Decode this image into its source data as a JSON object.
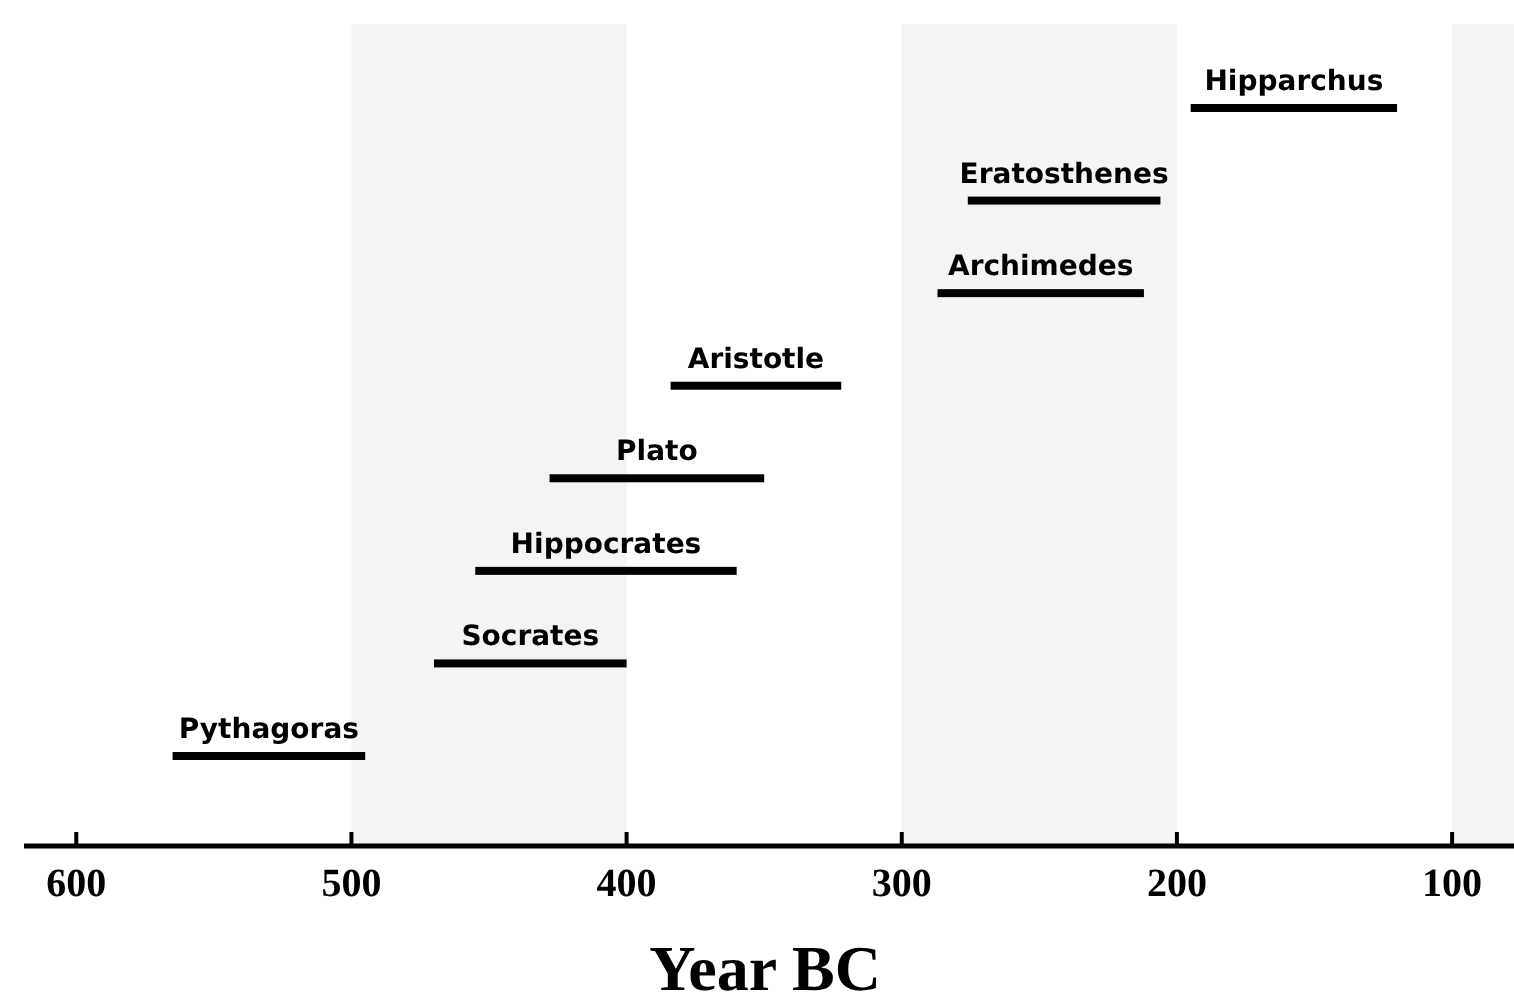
{
  "chart_data": {
    "type": "bar",
    "orientation": "horizontal",
    "xlabel": "Year BC",
    "categories": [
      "Hipparchus",
      "Eratosthenes",
      "Archimedes",
      "Aristotle",
      "Plato",
      "Hippocrates",
      "Socrates",
      "Pythagoras"
    ],
    "base": [
      120,
      206,
      212,
      322,
      350,
      360,
      400,
      495
    ],
    "values": [
      75,
      70,
      75,
      62,
      78,
      95,
      70,
      70
    ],
    "color": "#000000",
    "xlim": [
      619,
      77.5
    ],
    "xticks": [
      600,
      500,
      400,
      300,
      200,
      100
    ],
    "bands": [
      {
        "axis": "x",
        "from": 500,
        "to": 400,
        "color": "#f4f4f4"
      },
      {
        "axis": "x",
        "from": 300,
        "to": 200,
        "color": "#f4f4f4"
      },
      {
        "axis": "x",
        "from": 100,
        "to": 77.5,
        "color": "#f4f4f4"
      }
    ],
    "grid": false
  }
}
